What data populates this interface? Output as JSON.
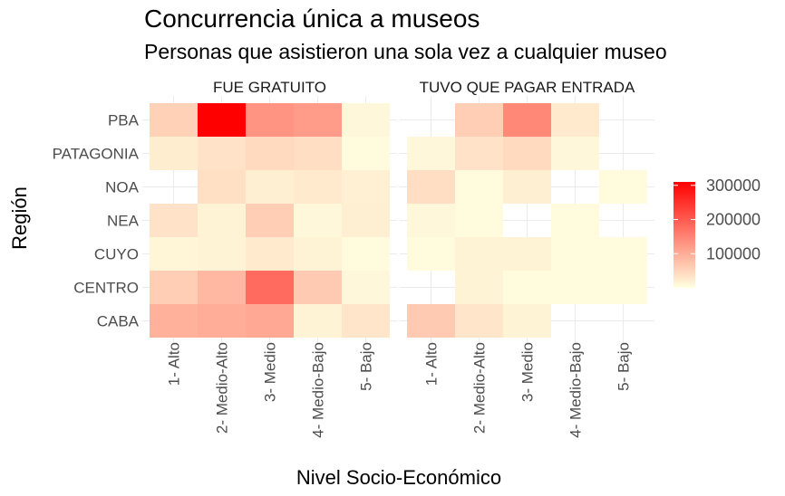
{
  "chart_data": {
    "type": "heatmap",
    "title": "Concurrencia única a museos",
    "subtitle": "Personas que asistieron una sola vez a cualquier museo",
    "xlabel": "Nivel Socio-Económico",
    "ylabel": "Región",
    "x_categories": [
      "1- Alto",
      "2- Medio-Alto",
      "3- Medio",
      "4- Medio-Bajo",
      "5- Bajo"
    ],
    "y_categories": [
      "PBA",
      "PATAGONIA",
      "NOA",
      "NEA",
      "CUYO",
      "CENTRO",
      "CABA"
    ],
    "facets": [
      {
        "label": "FUE GRATUITO",
        "values": [
          [
            55000,
            310000,
            130000,
            120000,
            10000
          ],
          [
            22000,
            35000,
            45000,
            40000,
            5000
          ],
          [
            null,
            38000,
            20000,
            25000,
            18000
          ],
          [
            35000,
            15000,
            60000,
            10000,
            20000
          ],
          [
            12000,
            15000,
            25000,
            15000,
            5000
          ],
          [
            60000,
            85000,
            180000,
            65000,
            10000
          ],
          [
            95000,
            100000,
            105000,
            15000,
            30000
          ]
        ]
      },
      {
        "label": "TUVO QUE PAGAR ENTRADA",
        "values": [
          [
            null,
            60000,
            145000,
            25000,
            null
          ],
          [
            10000,
            35000,
            45000,
            10000,
            null
          ],
          [
            40000,
            5000,
            20000,
            null,
            5000
          ],
          [
            10000,
            5000,
            null,
            5000,
            null
          ],
          [
            5000,
            15000,
            15000,
            5000,
            5000
          ],
          [
            null,
            15000,
            5000,
            5000,
            5000
          ],
          [
            65000,
            30000,
            15000,
            null,
            null
          ]
        ]
      }
    ],
    "color_scale": {
      "low": "#FFFFE0",
      "high": "#FF0000",
      "min": 0,
      "max": 310000
    },
    "legend": {
      "position": "right",
      "ticks": [
        100000,
        200000,
        300000
      ]
    },
    "grid": true
  }
}
